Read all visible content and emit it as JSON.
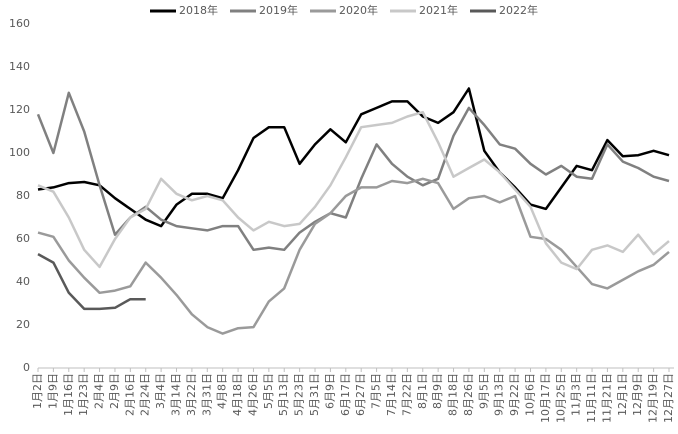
{
  "chart_data": {
    "type": "line",
    "categories": [
      "1月2日",
      "1月9日",
      "1月16日",
      "1月23日",
      "2月4日",
      "2月9日",
      "2月16日",
      "2月24日",
      "3月4日",
      "3月14日",
      "3月22日",
      "3月31日",
      "4月8日",
      "4月18日",
      "4月26日",
      "5月5日",
      "5月13日",
      "5月23日",
      "5月31日",
      "6月9日",
      "6月17日",
      "6月27日",
      "7月5日",
      "7月14日",
      "7月22日",
      "8月1日",
      "8月9日",
      "8月18日",
      "8月26日",
      "9月5日",
      "9月13日",
      "9月22日",
      "10月6日",
      "10月17日",
      "10月25日",
      "11月3日",
      "11月11日",
      "11月21日",
      "12月1日",
      "12月9日",
      "12月19日",
      "12月27日"
    ],
    "series": [
      {
        "name": "2018年",
        "color": "#000000",
        "values": [
          83,
          84,
          86,
          86.5,
          85,
          79,
          74,
          69,
          66,
          76,
          81,
          81,
          79,
          92,
          107,
          112,
          112,
          95,
          104,
          111,
          105,
          118,
          121,
          124,
          124,
          117,
          114,
          119,
          130,
          101,
          91,
          84,
          76,
          74,
          84,
          94,
          92,
          106,
          98.5,
          99,
          101,
          99
        ]
      },
      {
        "name": "2019年",
        "color": "#808080",
        "values": [
          118,
          100,
          128,
          110,
          85,
          62,
          70,
          75,
          69,
          66,
          65,
          64,
          66,
          66,
          55,
          56,
          55,
          63,
          68,
          72,
          70,
          88,
          104,
          95,
          89,
          85,
          88,
          108,
          121,
          113,
          104,
          102,
          95,
          90,
          94,
          89,
          88,
          104,
          96,
          93,
          89,
          87
        ]
      },
      {
        "name": "2020年",
        "color": "#9a9a9a",
        "values": [
          63,
          61,
          50,
          42,
          35,
          36,
          38,
          49,
          42,
          34,
          25,
          19,
          16,
          18.5,
          19,
          31,
          37,
          55,
          67,
          72,
          80,
          84,
          84,
          87,
          86,
          88,
          86,
          74,
          79,
          80,
          77,
          80,
          61,
          60,
          55,
          47,
          39,
          37,
          41,
          45,
          48,
          54
        ]
      },
      {
        "name": "2021年",
        "color": "#c8c8c8",
        "values": [
          85,
          82,
          70,
          55,
          47,
          60,
          70,
          74,
          88,
          81,
          78,
          80,
          78,
          70,
          64,
          68,
          66,
          67,
          75,
          85,
          98,
          112,
          113,
          114,
          117,
          119,
          105,
          89,
          93,
          97,
          91,
          83,
          75,
          58,
          49,
          46,
          55,
          57,
          54,
          62,
          53,
          59
        ]
      },
      {
        "name": "2022年",
        "color": "#595959",
        "values": [
          53,
          49,
          35,
          27.5,
          27.5,
          28,
          32,
          32,
          null,
          null,
          null,
          null,
          null,
          null,
          null,
          null,
          null,
          null,
          null,
          null,
          null,
          null,
          null,
          null,
          null,
          null,
          null,
          null,
          null,
          null,
          null,
          null,
          null,
          null,
          null,
          null,
          null,
          null,
          null,
          null,
          null,
          null
        ]
      }
    ],
    "ylim": [
      0,
      160
    ],
    "yticks": [
      0,
      20,
      40,
      60,
      80,
      100,
      120,
      140,
      160
    ],
    "grid": false,
    "legend": "top"
  }
}
